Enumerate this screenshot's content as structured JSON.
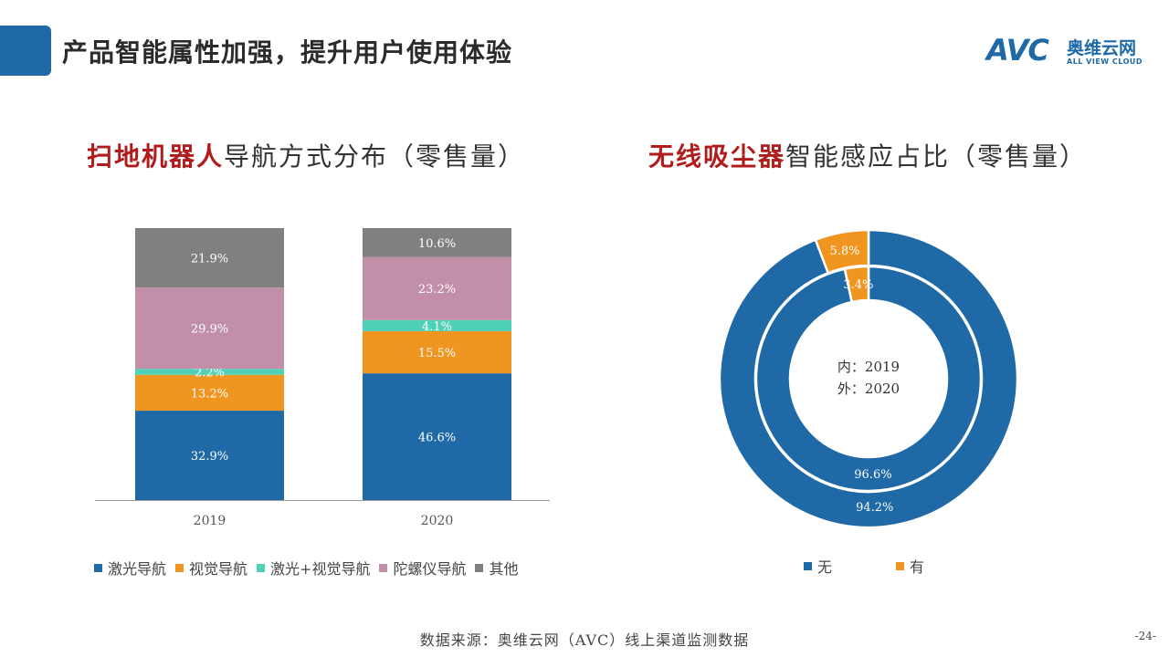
{
  "page": {
    "title": "产品智能属性加强，提升用户使用体验",
    "source": "数据来源：奥维云网（AVC）线上渠道监测数据",
    "page_number": "-24-"
  },
  "logo": {
    "mark": "AVC",
    "cn": "奥维云网",
    "en": "ALL VIEW CLOUD"
  },
  "bar_section": {
    "title_highlight": "扫地机器人",
    "title_rest": "导航方式分布（零售量）"
  },
  "donut_section": {
    "title_highlight": "无线吸尘器",
    "title_rest": "智能感应占比（零售量）"
  },
  "colors": {
    "blue": "#1f6aa6",
    "orange": "#ef9520",
    "teal": "#4fd1b7",
    "pink": "#c28fa9",
    "gray": "#808080",
    "title_red": "#b01c1c"
  },
  "chart_data": [
    {
      "type": "bar",
      "stacked": true,
      "categories": [
        "2019",
        "2020"
      ],
      "series": [
        {
          "name": "激光导航",
          "color": "#1f6aa6",
          "values": [
            32.9,
            46.6
          ]
        },
        {
          "name": "视觉导航",
          "color": "#ef9520",
          "values": [
            13.2,
            15.5
          ]
        },
        {
          "name": "激光+视觉导航",
          "color": "#4fd1b7",
          "values": [
            2.2,
            4.1
          ]
        },
        {
          "name": "陀螺仪导航",
          "color": "#c28fa9",
          "values": [
            29.9,
            23.2
          ]
        },
        {
          "name": "其他",
          "color": "#808080",
          "values": [
            21.9,
            10.6
          ]
        }
      ],
      "value_suffix": "%",
      "legend_position": "bottom",
      "grid": false
    },
    {
      "type": "pie",
      "variant": "nested-donut",
      "center_label": [
        "内：2019",
        "外：2020"
      ],
      "rings": [
        {
          "name": "2020",
          "position": "outer",
          "slices": [
            {
              "label": "无",
              "value": 94.2,
              "color": "#1f6aa6"
            },
            {
              "label": "有",
              "value": 5.8,
              "color": "#ef9520"
            }
          ]
        },
        {
          "name": "2019",
          "position": "inner",
          "slices": [
            {
              "label": "无",
              "value": 96.6,
              "color": "#1f6aa6"
            },
            {
              "label": "有",
              "value": 3.4,
              "color": "#ef9520"
            }
          ]
        }
      ],
      "value_suffix": "%",
      "legend_position": "bottom"
    }
  ]
}
